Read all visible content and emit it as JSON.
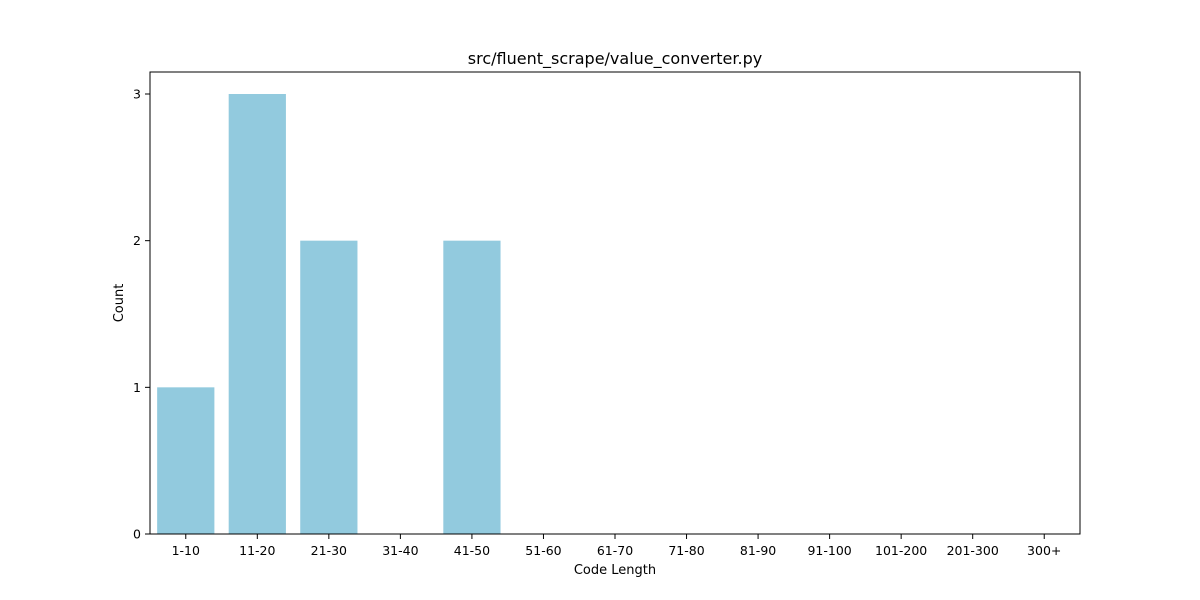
{
  "chart_data": {
    "type": "bar",
    "title": "src/fluent_scrape/value_converter.py",
    "xlabel": "Code Length",
    "ylabel": "Count",
    "categories": [
      "1-10",
      "11-20",
      "21-30",
      "31-40",
      "41-50",
      "51-60",
      "61-70",
      "71-80",
      "81-90",
      "91-100",
      "101-200",
      "201-300",
      "300+"
    ],
    "values": [
      1,
      3,
      2,
      0,
      2,
      0,
      0,
      0,
      0,
      0,
      0,
      0,
      0
    ],
    "yticks": [
      0,
      1,
      2,
      3
    ],
    "ylim": [
      0,
      3.15
    ],
    "grid": false,
    "legend": "none",
    "bar_color": "#92cade"
  }
}
